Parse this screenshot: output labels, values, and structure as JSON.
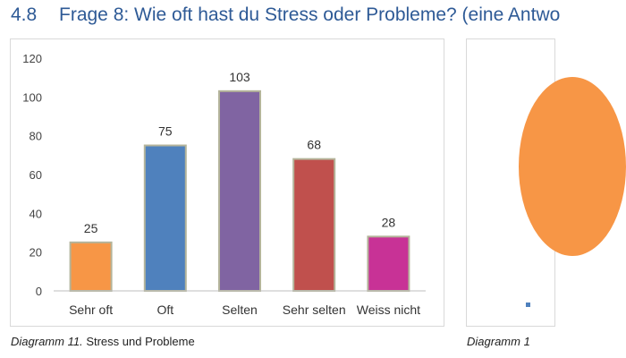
{
  "heading": {
    "number": "4.8",
    "title": "Frage 8: Wie oft hast du Stress oder Probleme? (eine Antwo"
  },
  "captions": {
    "left_prefix": "Diagramm 11.",
    "left_text": "Stress und Probleme",
    "right_prefix": "Diagramm 1"
  },
  "chart_data": {
    "type": "bar",
    "categories": [
      "Sehr oft",
      "Oft",
      "Selten",
      "Sehr selten",
      "Weiss nicht"
    ],
    "values": [
      25,
      75,
      103,
      68,
      28
    ],
    "colors": [
      "#f79646",
      "#4f81bd",
      "#8064a2",
      "#c0504d",
      "#c83296"
    ],
    "ylim": [
      0,
      120
    ],
    "yticks": [
      0,
      20,
      40,
      60,
      80,
      100,
      120
    ],
    "grid": false,
    "data_labels": true
  },
  "side_chart": {
    "type": "pie",
    "visible_color": "#f79646",
    "legend_color": "#4f81bd"
  }
}
